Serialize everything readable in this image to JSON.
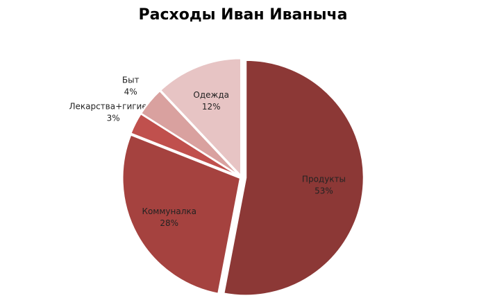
{
  "chart_data": {
    "type": "pie",
    "title": "Расходы Иван Иваныча",
    "categories": [
      "Продукты",
      "Коммуналка",
      "Лекарства+гигиена",
      "Быт",
      "Одежда"
    ],
    "values": [
      53,
      28,
      3,
      4,
      12
    ],
    "value_labels": [
      "53%",
      "28%",
      "3%",
      "4%",
      "12%"
    ],
    "colors": [
      "#8c3836",
      "#a5423f",
      "#c0504d",
      "#d9a19f",
      "#e7c4c4"
    ]
  }
}
